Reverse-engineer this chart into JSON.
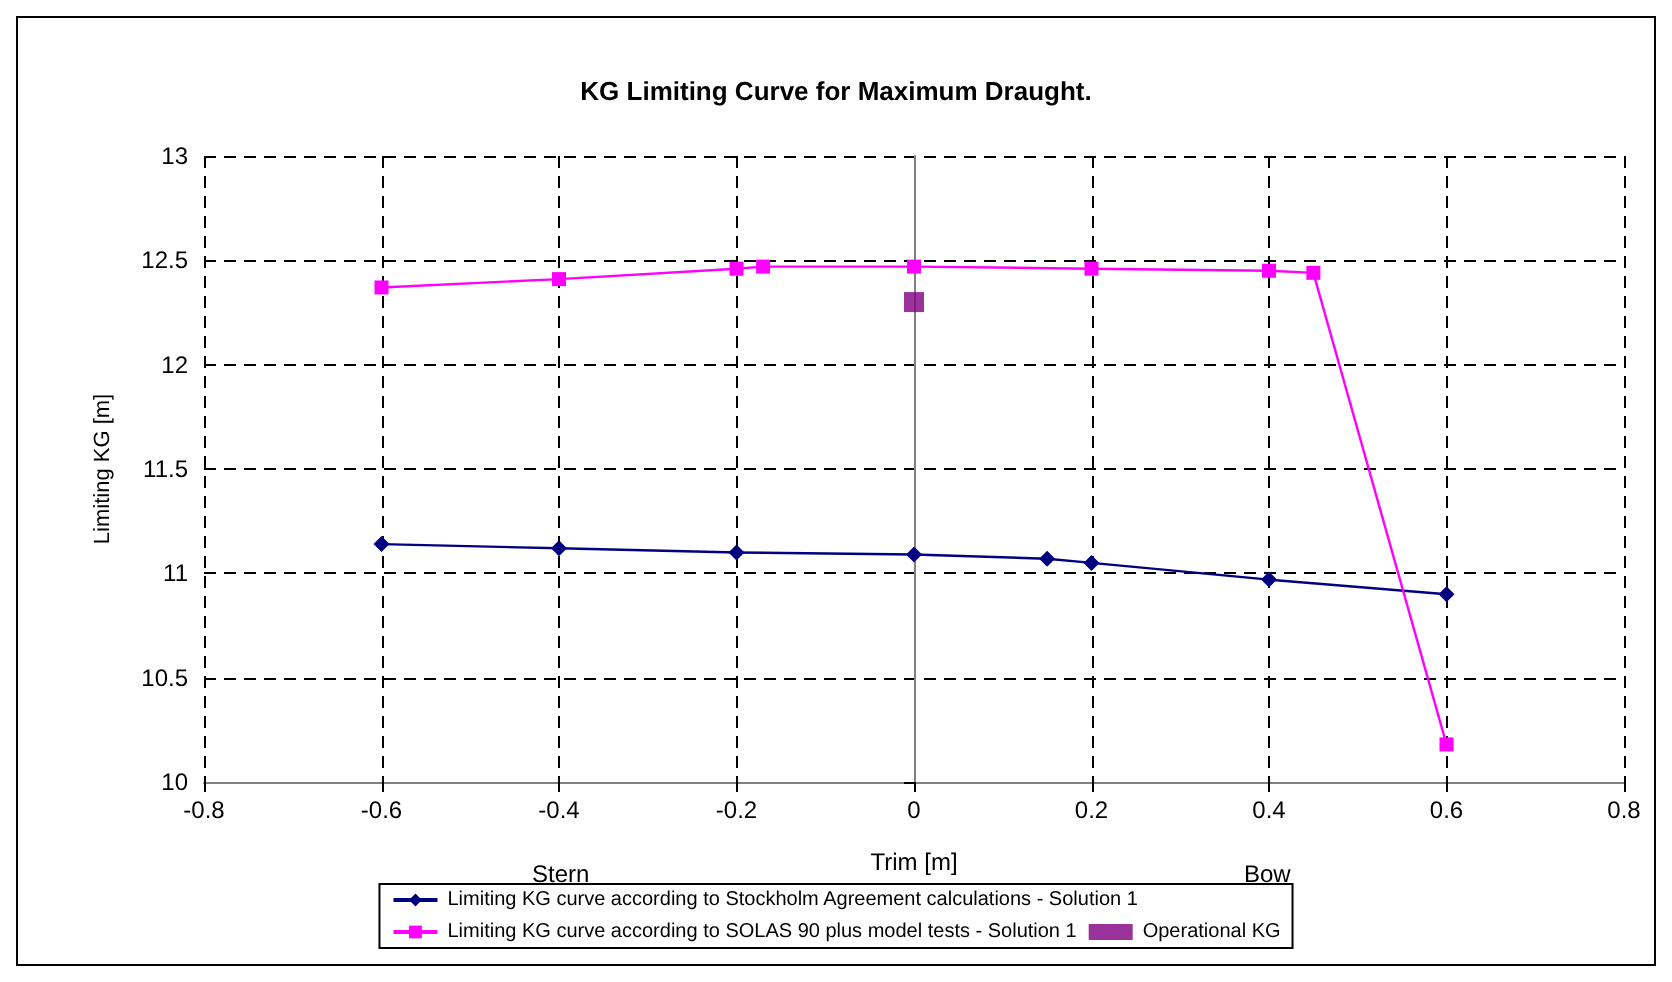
{
  "chart_data": {
    "type": "line",
    "title": "KG Limiting Curve for Maximum Draught.",
    "xlabel": "Trim [m]",
    "ylabel": "Limiting KG [m]",
    "annotations": [
      "Stern",
      "Bow"
    ],
    "xlim": [
      -0.8,
      0.8
    ],
    "xticks": [
      -0.8,
      -0.6,
      -0.4,
      -0.2,
      0,
      0.2,
      0.4,
      0.6,
      0.8
    ],
    "ylim": [
      10,
      13
    ],
    "yticks": [
      10,
      10.5,
      11,
      11.5,
      12,
      12.5,
      13
    ],
    "grid": true,
    "legend": "bottom",
    "series": [
      {
        "name": "Limiting KG curve according to Stockholm Agreement calculations - Solution 1",
        "color": "#000080",
        "marker": "diamond",
        "x": [
          -0.6,
          -0.4,
          -0.2,
          0,
          0.15,
          0.2,
          0.4,
          0.6
        ],
        "values": [
          11.14,
          11.12,
          11.1,
          11.09,
          11.07,
          11.05,
          10.97,
          10.9
        ]
      },
      {
        "name": "Limiting KG curve according to SOLAS 90 plus model tests - Solution 1",
        "color": "#ff00ff",
        "marker": "square",
        "x": [
          -0.6,
          -0.4,
          -0.2,
          -0.17,
          0,
          0.2,
          0.4,
          0.45,
          0.6
        ],
        "values": [
          12.37,
          12.41,
          12.46,
          12.47,
          12.47,
          12.46,
          12.45,
          12.44,
          10.18
        ]
      },
      {
        "name": "Operational KG",
        "type": "scatter",
        "color": "#800080",
        "marker": "square",
        "x": [
          0
        ],
        "values": [
          12.3
        ]
      }
    ]
  }
}
